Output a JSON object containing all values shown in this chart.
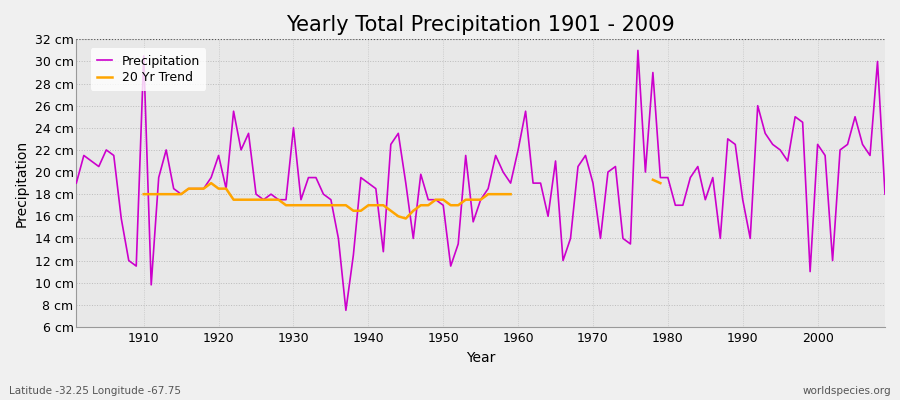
{
  "title": "Yearly Total Precipitation 1901 - 2009",
  "xlabel": "Year",
  "ylabel": "Precipitation",
  "subtitle_lat_lon": "Latitude -32.25 Longitude -67.75",
  "watermark": "worldspecies.org",
  "years": [
    1901,
    1902,
    1903,
    1904,
    1905,
    1906,
    1907,
    1908,
    1909,
    1910,
    1911,
    1912,
    1913,
    1914,
    1915,
    1916,
    1917,
    1918,
    1919,
    1920,
    1921,
    1922,
    1923,
    1924,
    1925,
    1926,
    1927,
    1928,
    1929,
    1930,
    1931,
    1932,
    1933,
    1934,
    1935,
    1936,
    1937,
    1938,
    1939,
    1940,
    1941,
    1942,
    1943,
    1944,
    1945,
    1946,
    1947,
    1948,
    1949,
    1950,
    1951,
    1952,
    1953,
    1954,
    1955,
    1956,
    1957,
    1958,
    1959,
    1960,
    1961,
    1962,
    1963,
    1964,
    1965,
    1966,
    1967,
    1968,
    1969,
    1970,
    1971,
    1972,
    1973,
    1974,
    1975,
    1976,
    1977,
    1978,
    1979,
    1980,
    1981,
    1982,
    1983,
    1984,
    1985,
    1986,
    1987,
    1988,
    1989,
    1990,
    1991,
    1992,
    1993,
    1994,
    1995,
    1996,
    1997,
    1998,
    1999,
    2000,
    2001,
    2002,
    2003,
    2004,
    2005,
    2006,
    2007,
    2008,
    2009
  ],
  "precip": [
    19.0,
    21.5,
    21.0,
    20.5,
    22.0,
    21.5,
    15.8,
    12.0,
    11.5,
    30.5,
    9.8,
    19.5,
    22.0,
    18.5,
    18.0,
    18.5,
    18.5,
    18.5,
    19.5,
    21.5,
    18.5,
    25.5,
    22.0,
    23.5,
    18.0,
    17.5,
    18.0,
    17.5,
    17.5,
    24.0,
    17.5,
    19.5,
    19.5,
    18.0,
    17.5,
    14.0,
    7.5,
    12.5,
    19.5,
    19.0,
    18.5,
    12.8,
    22.5,
    23.5,
    19.0,
    14.0,
    19.8,
    17.5,
    17.5,
    17.0,
    11.5,
    13.5,
    21.5,
    15.5,
    17.5,
    18.5,
    21.5,
    20.0,
    19.0,
    22.0,
    25.5,
    19.0,
    19.0,
    16.0,
    21.0,
    12.0,
    14.0,
    20.5,
    21.5,
    19.0,
    14.0,
    20.0,
    20.5,
    14.0,
    13.5,
    31.0,
    20.0,
    29.0,
    19.5,
    19.5,
    17.0,
    17.0,
    19.5,
    20.5,
    17.5,
    19.5,
    14.0,
    23.0,
    22.5,
    17.5,
    14.0,
    26.0,
    23.5,
    22.5,
    22.0,
    21.0,
    25.0,
    24.5,
    11.0,
    22.5,
    21.5,
    12.0,
    22.0,
    22.5,
    25.0,
    22.5,
    21.5,
    30.0,
    18.0
  ],
  "trend_years": [
    1910,
    1911,
    1912,
    1913,
    1914,
    1915,
    1916,
    1917,
    1918,
    1919,
    1920,
    1921,
    1922,
    1923,
    1924,
    1925,
    1926,
    1927,
    1928,
    1929,
    1930,
    1931,
    1932,
    1933,
    1934,
    1935,
    1936,
    1937,
    1938,
    1939,
    1940,
    1941,
    1942,
    1943,
    1944,
    1945,
    1946,
    1947,
    1948,
    1949,
    1950,
    1951,
    1952,
    1953,
    1954,
    1955,
    1956,
    1957,
    1958,
    1959,
    1978,
    1979
  ],
  "trend_vals": [
    18.0,
    18.0,
    18.0,
    18.0,
    18.0,
    18.0,
    18.5,
    18.5,
    18.5,
    19.0,
    18.5,
    18.5,
    17.5,
    17.5,
    17.5,
    17.5,
    17.5,
    17.5,
    17.5,
    17.0,
    17.0,
    17.0,
    17.0,
    17.0,
    17.0,
    17.0,
    17.0,
    17.0,
    16.5,
    16.5,
    17.0,
    17.0,
    17.0,
    16.5,
    16.0,
    15.8,
    16.5,
    17.0,
    17.0,
    17.5,
    17.5,
    17.0,
    17.0,
    17.5,
    17.5,
    17.5,
    18.0,
    18.0,
    18.0,
    18.0,
    19.3,
    19.0
  ],
  "precip_color": "#cc00cc",
  "trend_color": "#FFA500",
  "fig_bg_color": "#f0f0f0",
  "plot_bg_color": "#e8e8e8",
  "ylim": [
    6,
    32
  ],
  "yticks": [
    6,
    8,
    10,
    12,
    14,
    16,
    18,
    20,
    22,
    24,
    26,
    28,
    30,
    32
  ],
  "xticks": [
    1910,
    1920,
    1930,
    1940,
    1950,
    1960,
    1970,
    1980,
    1990,
    2000
  ],
  "title_fontsize": 15,
  "axis_label_fontsize": 10,
  "tick_fontsize": 9,
  "legend_fontsize": 9
}
